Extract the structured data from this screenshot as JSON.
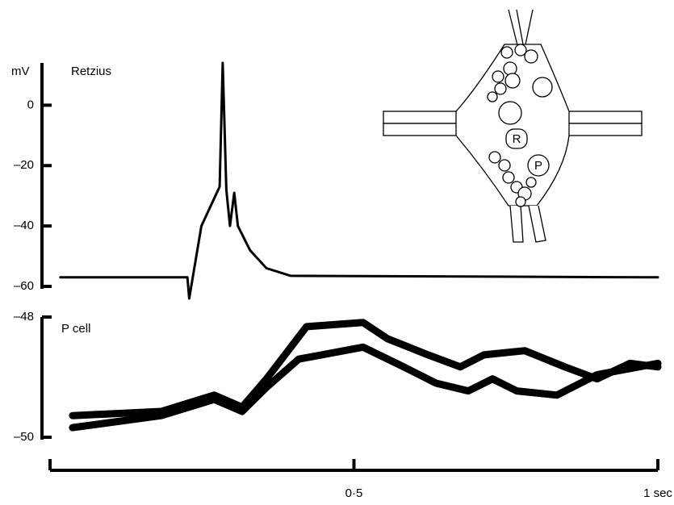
{
  "chart_data": [
    {
      "type": "line",
      "title": "Retzius",
      "ylabel": "mV",
      "xlim": [
        0,
        1
      ],
      "ylim": [
        -60,
        14
      ],
      "yticks": [
        0,
        {
          "value": -20,
          "label": "–20"
        },
        {
          "value": -40,
          "label": "–40"
        },
        {
          "value": -60,
          "label": "–60"
        }
      ],
      "series": [
        {
          "color": "#000000",
          "x": [
            0.017,
            0.226,
            0.229,
            0.249,
            0.279,
            0.284,
            0.29,
            0.296,
            0.303,
            0.309,
            0.329,
            0.356,
            0.396,
            1.0
          ],
          "values": [
            -57,
            -57,
            -64,
            -40,
            -27,
            14,
            -28,
            -40,
            -29,
            -40,
            -48,
            -54,
            -56.5,
            -57
          ]
        }
      ]
    },
    {
      "type": "line",
      "title": "P cell",
      "xlim": [
        0,
        1
      ],
      "ylim": [
        -50,
        -48
      ],
      "yticks": [
        {
          "value": -48,
          "label": "–48"
        },
        {
          "value": -50,
          "label": "–50"
        }
      ],
      "xticks": [
        {
          "value": 0.5,
          "label": "0·5"
        },
        {
          "value": 1,
          "label": "1 sec"
        }
      ],
      "series": [
        {
          "color": "#000000",
          "x": [
            0.037,
            0.183,
            0.27,
            0.316,
            0.356,
            0.422,
            0.515,
            0.555,
            0.622,
            0.675,
            0.714,
            0.781,
            0.847,
            0.9,
            0.954,
            1.0
          ],
          "values": [
            -49.64,
            -49.57,
            -49.3,
            -49.5,
            -49.03,
            -48.16,
            -48.09,
            -48.36,
            -48.63,
            -48.83,
            -48.63,
            -48.56,
            -48.83,
            -49.03,
            -48.77,
            -48.83
          ]
        },
        {
          "color": "#000000",
          "x": [
            0.037,
            0.183,
            0.27,
            0.316,
            0.356,
            0.409,
            0.515,
            0.582,
            0.635,
            0.688,
            0.728,
            0.768,
            0.834,
            0.9,
            1.0
          ],
          "values": [
            -49.84,
            -49.64,
            -49.37,
            -49.57,
            -49.17,
            -48.7,
            -48.5,
            -48.83,
            -49.1,
            -49.23,
            -49.03,
            -49.23,
            -49.3,
            -48.96,
            -48.77
          ]
        }
      ]
    }
  ],
  "inset": {
    "labels": [
      "R",
      "P"
    ]
  }
}
